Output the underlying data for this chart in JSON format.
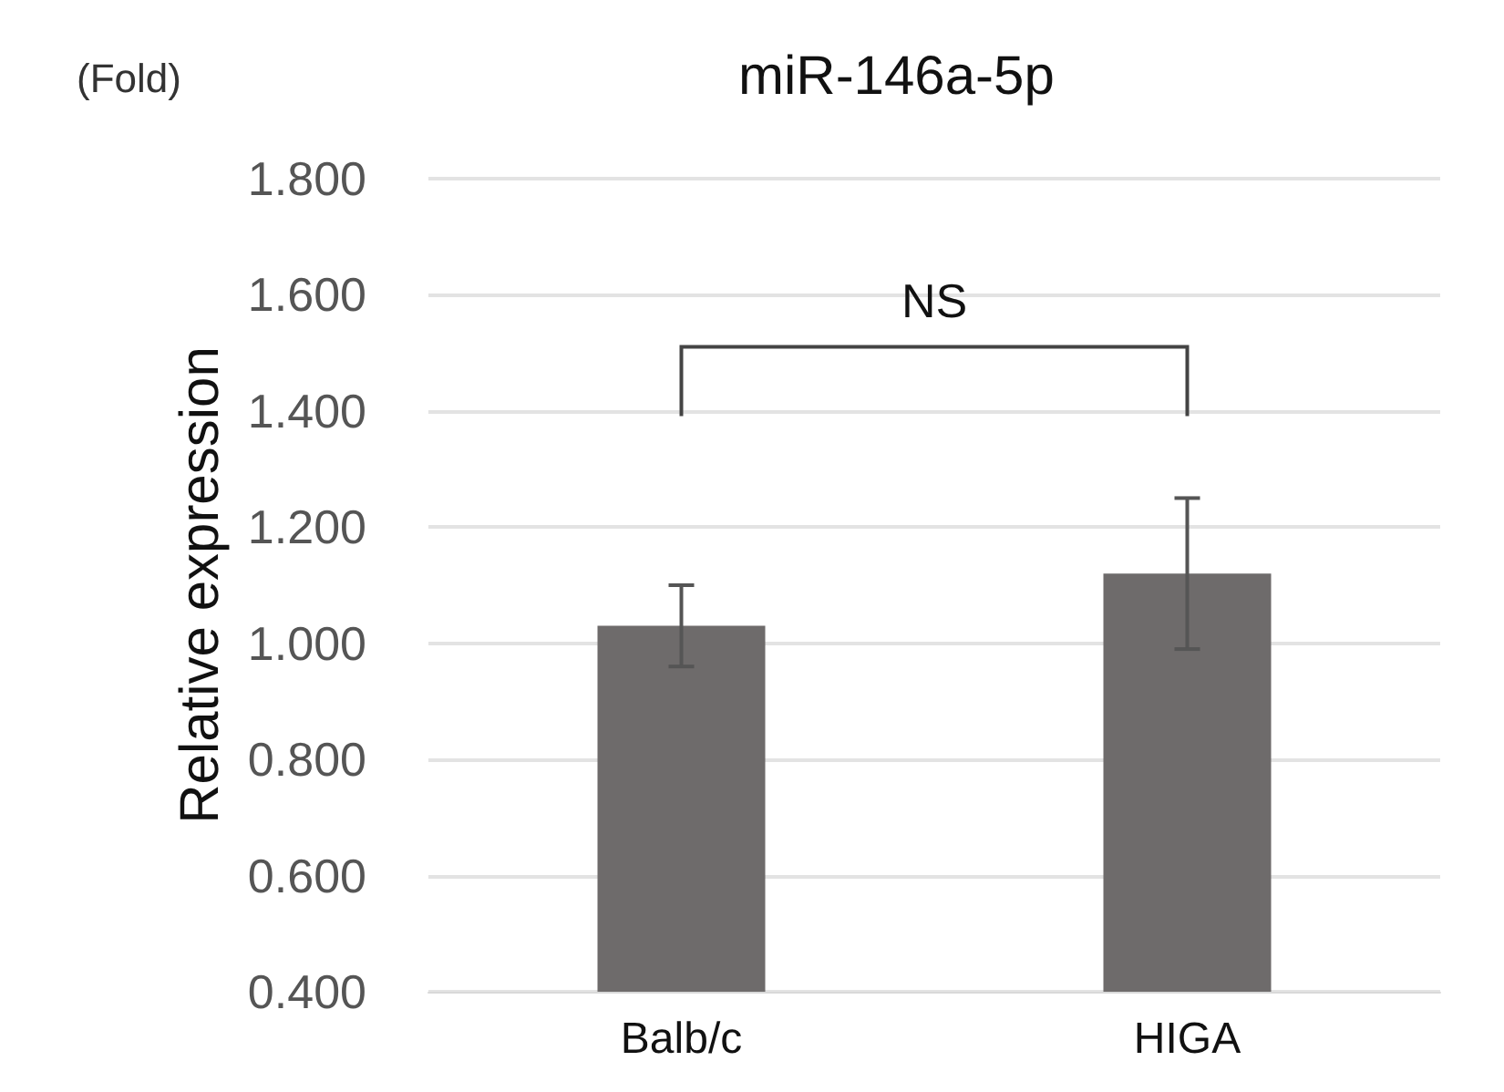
{
  "chart_data": {
    "type": "bar",
    "title": "miR-146a-5p",
    "ylabel": "Relative expression",
    "categories": [
      "Balb/c",
      "HIGA"
    ],
    "values": [
      1.03,
      1.12
    ],
    "errors": [
      0.07,
      0.13
    ],
    "color": "#6e6b6b",
    "ylim": [
      0.4,
      1.8
    ],
    "yticks": [
      {
        "value": 0.4,
        "label": "0.400"
      },
      {
        "value": 0.6,
        "label": "0.600"
      },
      {
        "value": 0.8,
        "label": "0.800"
      },
      {
        "value": 1.0,
        "label": "1.000"
      },
      {
        "value": 1.2,
        "label": "1.200"
      },
      {
        "value": 1.4,
        "label": "1.400"
      },
      {
        "value": 1.6,
        "label": "1.600"
      },
      {
        "value": 1.8,
        "label": "1.800"
      }
    ],
    "grid": "y",
    "annotations": [
      "(Fold)",
      "NS"
    ]
  }
}
